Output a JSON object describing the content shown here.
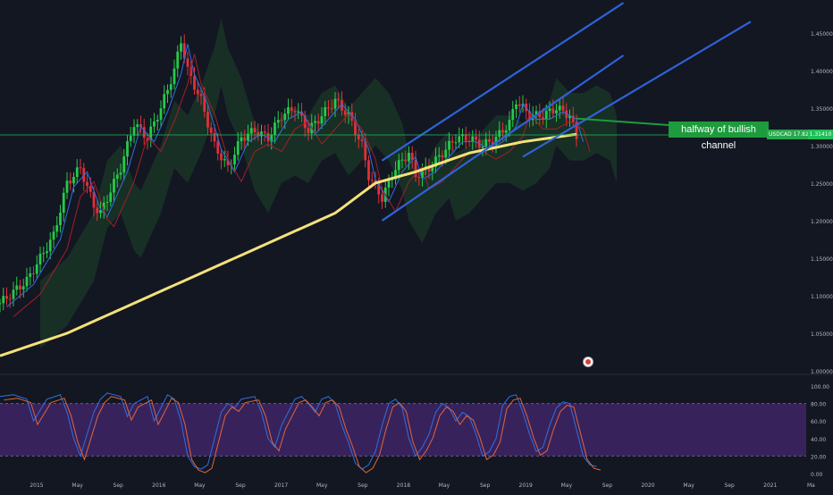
{
  "chart_data": {
    "type": "line",
    "symbol_tag": "USDCAD 17.82%",
    "last_price_label": "1.31410",
    "annotation": "halfway of bullish channel",
    "x_ticks": [
      "2015",
      "May",
      "Sep",
      "2016",
      "May",
      "Sep",
      "2017",
      "May",
      "Sep",
      "2018",
      "May",
      "Sep",
      "2019",
      "May",
      "Sep",
      "2020",
      "May",
      "Sep",
      "2021",
      "Ma"
    ],
    "price_axis": {
      "ticks": [
        "1.45000",
        "1.40000",
        "1.35000",
        "1.30000",
        "1.25000",
        "1.20000",
        "1.15000",
        "1.10000",
        "1.05000",
        "1.00000"
      ],
      "ylim": [
        1.0,
        1.47
      ]
    },
    "stoch_axis": {
      "ticks": [
        "100.00",
        "80.00",
        "60.00",
        "40.00",
        "20.00",
        "0.00"
      ],
      "ylim": [
        0,
        100
      ],
      "band": [
        20,
        80
      ]
    },
    "price_anchors": [
      [
        0,
        1.09
      ],
      [
        4,
        1.12
      ],
      [
        8,
        1.18
      ],
      [
        10,
        1.25
      ],
      [
        12,
        1.27
      ],
      [
        14,
        1.22
      ],
      [
        15,
        1.21
      ],
      [
        18,
        1.27
      ],
      [
        20,
        1.33
      ],
      [
        22,
        1.31
      ],
      [
        24,
        1.35
      ],
      [
        26,
        1.4
      ],
      [
        27,
        1.44
      ],
      [
        28,
        1.4
      ],
      [
        30,
        1.36
      ],
      [
        32,
        1.3
      ],
      [
        34,
        1.27
      ],
      [
        36,
        1.31
      ],
      [
        38,
        1.32
      ],
      [
        40,
        1.31
      ],
      [
        42,
        1.34
      ],
      [
        44,
        1.35
      ],
      [
        46,
        1.32
      ],
      [
        48,
        1.34
      ],
      [
        50,
        1.36
      ],
      [
        52,
        1.34
      ],
      [
        54,
        1.3
      ],
      [
        55,
        1.26
      ],
      [
        57,
        1.23
      ],
      [
        59,
        1.27
      ],
      [
        61,
        1.29
      ],
      [
        62,
        1.26
      ],
      [
        64,
        1.27
      ],
      [
        66,
        1.29
      ],
      [
        68,
        1.31
      ],
      [
        70,
        1.31
      ],
      [
        72,
        1.3
      ],
      [
        74,
        1.31
      ],
      [
        76,
        1.33
      ],
      [
        77,
        1.36
      ],
      [
        79,
        1.34
      ],
      [
        81,
        1.34
      ],
      [
        83,
        1.35
      ],
      [
        85,
        1.34
      ],
      [
        86,
        1.31
      ]
    ],
    "ma_anchors": [
      [
        0,
        1.02
      ],
      [
        10,
        1.05
      ],
      [
        20,
        1.09
      ],
      [
        30,
        1.13
      ],
      [
        40,
        1.17
      ],
      [
        50,
        1.21
      ],
      [
        56,
        1.25
      ],
      [
        62,
        1.265
      ],
      [
        70,
        1.29
      ],
      [
        78,
        1.305
      ],
      [
        86,
        1.315
      ]
    ],
    "stoch_anchors": [
      [
        0,
        88
      ],
      [
        2,
        90
      ],
      [
        4,
        85
      ],
      [
        5,
        60
      ],
      [
        7,
        85
      ],
      [
        9,
        90
      ],
      [
        10,
        70
      ],
      [
        11,
        40
      ],
      [
        12,
        20
      ],
      [
        13,
        45
      ],
      [
        14,
        70
      ],
      [
        15,
        85
      ],
      [
        16,
        92
      ],
      [
        18,
        88
      ],
      [
        19,
        65
      ],
      [
        20,
        80
      ],
      [
        22,
        88
      ],
      [
        23,
        60
      ],
      [
        24,
        75
      ],
      [
        25,
        90
      ],
      [
        26,
        85
      ],
      [
        27,
        60
      ],
      [
        28,
        20
      ],
      [
        29,
        8
      ],
      [
        30,
        5
      ],
      [
        31,
        10
      ],
      [
        32,
        40
      ],
      [
        33,
        70
      ],
      [
        34,
        80
      ],
      [
        35,
        75
      ],
      [
        36,
        85
      ],
      [
        38,
        88
      ],
      [
        39,
        70
      ],
      [
        40,
        40
      ],
      [
        41,
        30
      ],
      [
        42,
        55
      ],
      [
        43,
        70
      ],
      [
        44,
        85
      ],
      [
        45,
        88
      ],
      [
        46,
        80
      ],
      [
        47,
        70
      ],
      [
        48,
        85
      ],
      [
        49,
        88
      ],
      [
        50,
        80
      ],
      [
        51,
        55
      ],
      [
        52,
        35
      ],
      [
        53,
        12
      ],
      [
        54,
        5
      ],
      [
        55,
        10
      ],
      [
        56,
        25
      ],
      [
        57,
        55
      ],
      [
        58,
        80
      ],
      [
        59,
        85
      ],
      [
        60,
        75
      ],
      [
        61,
        40
      ],
      [
        62,
        20
      ],
      [
        63,
        30
      ],
      [
        64,
        45
      ],
      [
        65,
        70
      ],
      [
        66,
        80
      ],
      [
        67,
        75
      ],
      [
        68,
        60
      ],
      [
        69,
        70
      ],
      [
        70,
        65
      ],
      [
        71,
        45
      ],
      [
        72,
        20
      ],
      [
        73,
        25
      ],
      [
        74,
        40
      ],
      [
        75,
        78
      ],
      [
        76,
        88
      ],
      [
        77,
        90
      ],
      [
        78,
        70
      ],
      [
        79,
        45
      ],
      [
        80,
        25
      ],
      [
        81,
        30
      ],
      [
        82,
        55
      ],
      [
        83,
        75
      ],
      [
        84,
        82
      ],
      [
        85,
        80
      ],
      [
        86,
        50
      ],
      [
        87,
        20
      ],
      [
        88,
        10
      ],
      [
        89,
        8
      ]
    ],
    "channel_lines": [
      [
        [
          57,
          1.2
        ],
        [
          93,
          1.42
        ]
      ],
      [
        [
          57,
          1.28
        ],
        [
          93,
          1.49
        ]
      ],
      [
        [
          78,
          1.285
        ],
        [
          112,
          1.465
        ]
      ]
    ],
    "legend": ""
  }
}
